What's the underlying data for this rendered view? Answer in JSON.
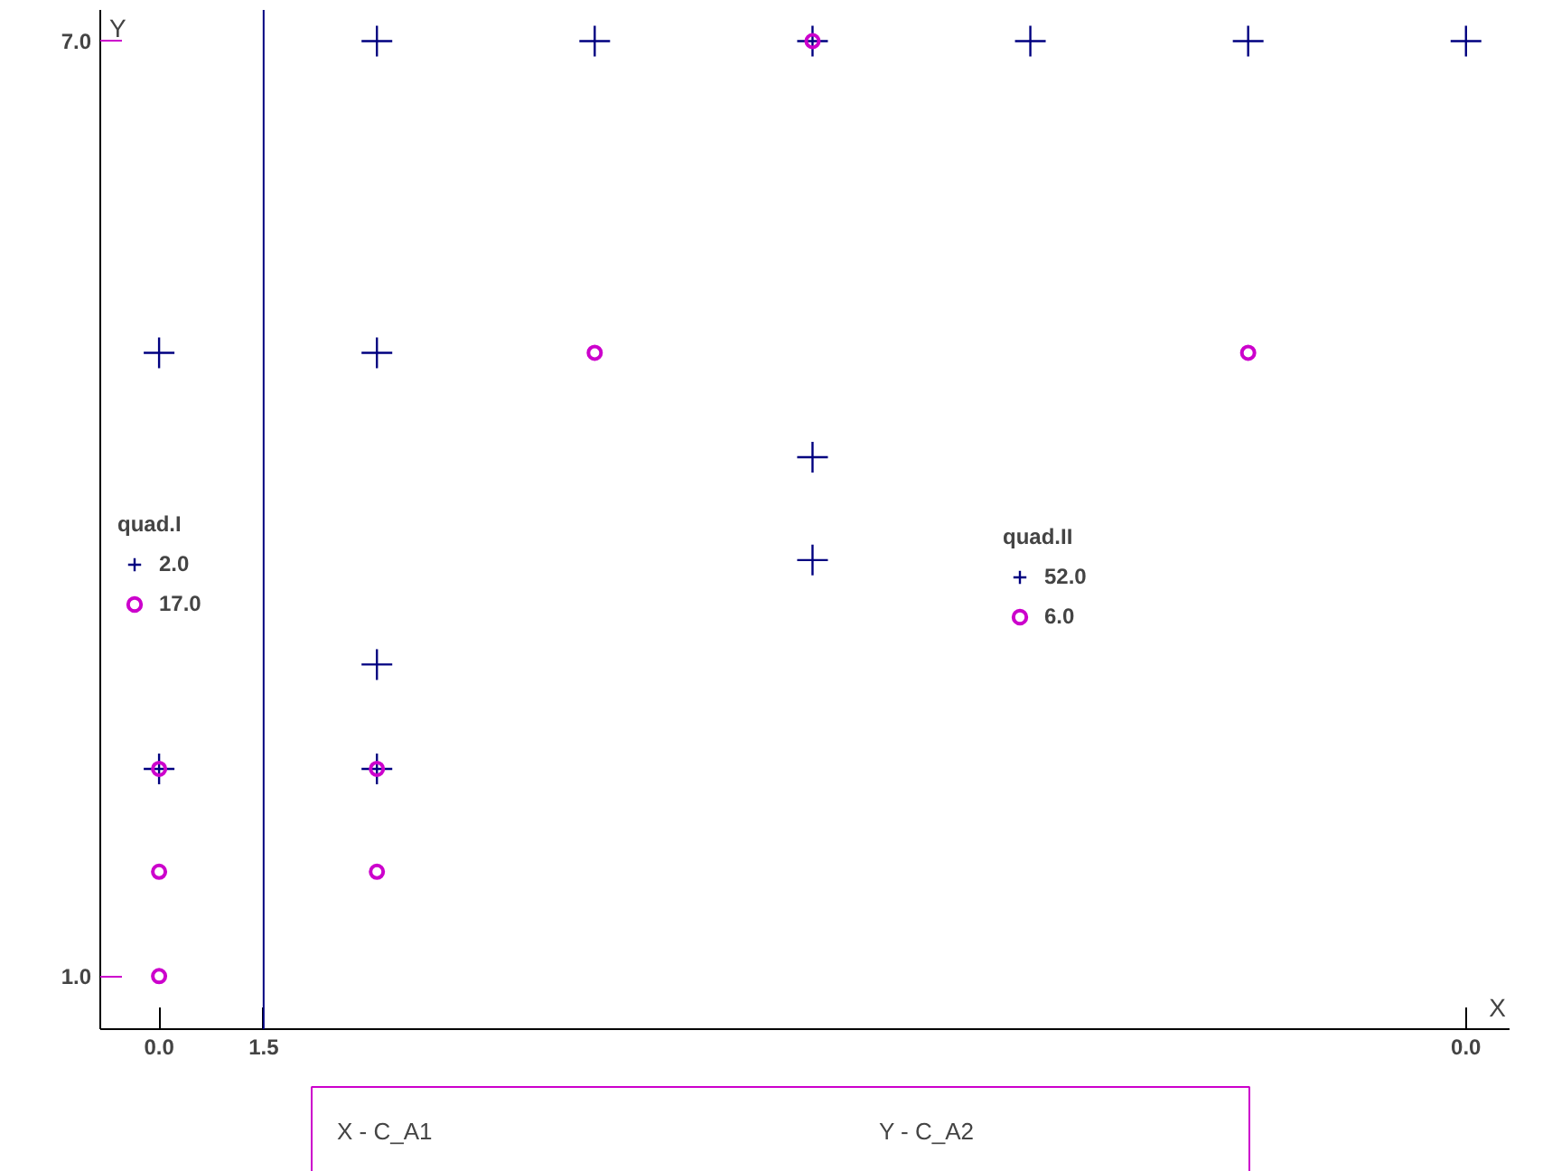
{
  "chart_data": {
    "type": "scatter",
    "xlabel": "X",
    "ylabel": "Y",
    "categories": [
      "0.0",
      null,
      null,
      null,
      null,
      null,
      "0.0"
    ],
    "ylim": [
      0.66,
      7.2
    ],
    "yticks": [
      {
        "value": 1,
        "label": "1.0"
      },
      {
        "value": 7,
        "label": "7.0"
      }
    ],
    "grid": false,
    "legend": "left",
    "annotations": [
      "quad.I",
      "quad.II",
      "X - C_A1",
      "Y - C_A2",
      "1.5"
    ],
    "series": [
      {
        "name": "2.0",
        "color": "#000080",
        "marker": "cross",
        "values": [
          5,
          null,
          null,
          null,
          null,
          null,
          null
        ]
      },
      {
        "color": "#000080",
        "marker": "cross",
        "values": [
          2.33,
          null,
          null,
          null,
          null,
          null,
          null
        ]
      },
      {
        "name": "17.0",
        "color": "#cc00cc",
        "marker": "circle",
        "values": [
          2.33,
          null,
          null,
          null,
          null,
          null,
          null
        ]
      },
      {
        "color": "#cc00cc",
        "marker": "circle",
        "values": [
          1.67,
          null,
          null,
          null,
          null,
          null,
          null
        ]
      },
      {
        "color": "#cc00cc",
        "marker": "circle",
        "values": [
          1,
          null,
          null,
          null,
          null,
          null,
          null
        ]
      },
      {
        "name": "52.0",
        "color": "#000080",
        "marker": "cross",
        "values": [
          null,
          7,
          7,
          7,
          7,
          7,
          7
        ]
      },
      {
        "color": "#000080",
        "marker": "cross",
        "values": [
          null,
          5,
          null,
          null,
          null,
          null,
          null
        ]
      },
      {
        "color": "#000080",
        "marker": "cross",
        "values": [
          null,
          null,
          null,
          4.33,
          null,
          null,
          null
        ]
      },
      {
        "color": "#000080",
        "marker": "cross",
        "values": [
          null,
          null,
          null,
          3.67,
          null,
          null,
          null
        ]
      },
      {
        "color": "#000080",
        "marker": "cross",
        "values": [
          null,
          3,
          null,
          null,
          null,
          null,
          null
        ]
      },
      {
        "color": "#000080",
        "marker": "cross",
        "values": [
          null,
          2.33,
          null,
          null,
          null,
          null,
          null
        ]
      },
      {
        "name": "6.0",
        "color": "#cc00cc",
        "marker": "circle",
        "values": [
          null,
          null,
          null,
          7,
          null,
          null,
          null
        ]
      },
      {
        "color": "#cc00cc",
        "marker": "circle",
        "values": [
          null,
          null,
          5,
          null,
          null,
          5,
          null
        ]
      },
      {
        "color": "#cc00cc",
        "marker": "circle",
        "values": [
          null,
          2.33,
          null,
          null,
          null,
          null,
          null
        ]
      },
      {
        "color": "#cc00cc",
        "marker": "circle",
        "values": [
          null,
          1.67,
          null,
          null,
          null,
          null,
          null
        ]
      }
    ]
  }
}
